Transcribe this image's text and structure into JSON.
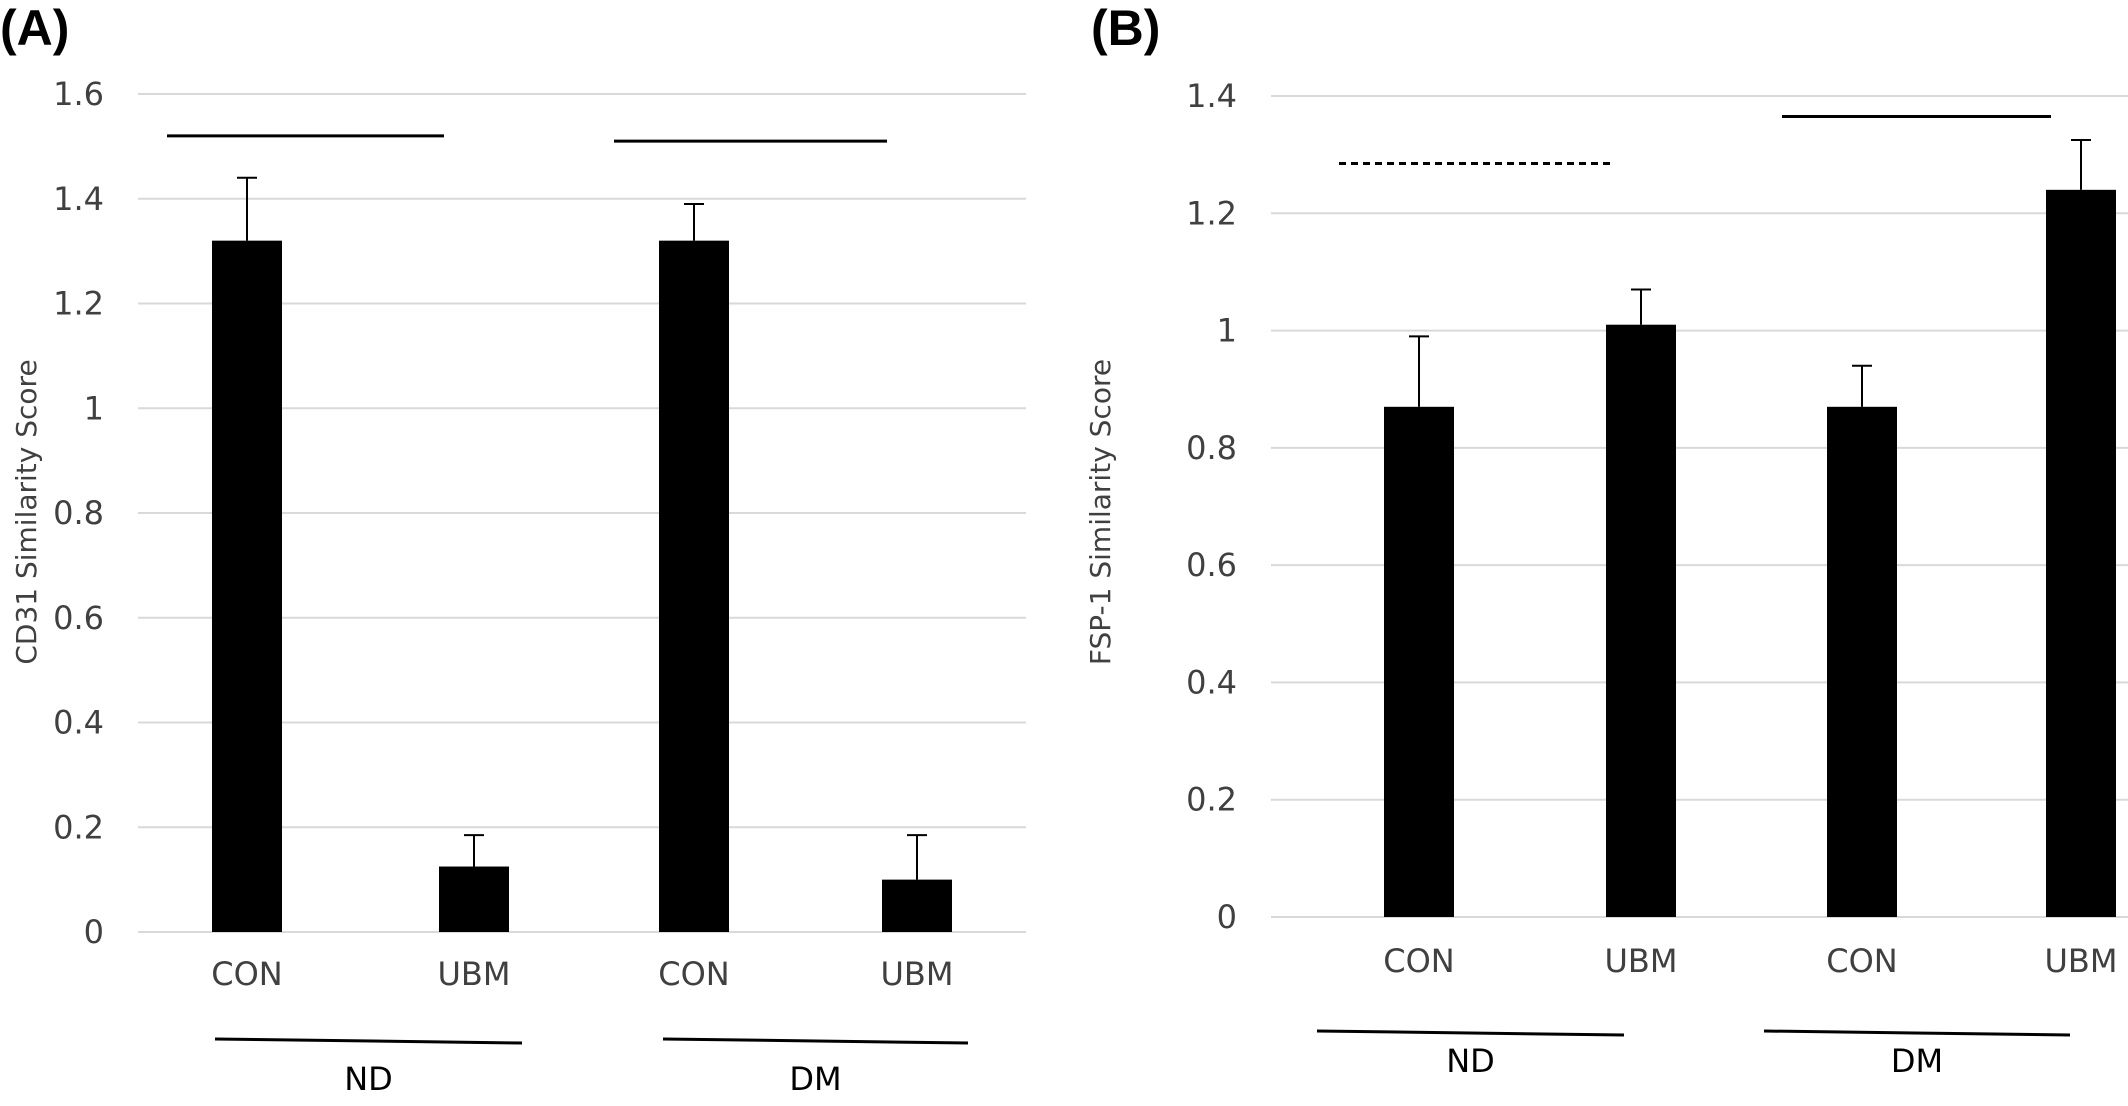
{
  "chart_data": [
    {
      "type": "bar",
      "panel_label": "(A)",
      "title": "",
      "xlabel": "",
      "ylabel": "CD31 Similarity Score",
      "ylim": [
        0,
        1.6
      ],
      "yticks": [
        "0",
        "0.2",
        "0.4",
        "0.6",
        "0.8",
        "1",
        "1.2",
        "1.4",
        "1.6"
      ],
      "categories": [
        "CON",
        "UBM",
        "CON",
        "UBM"
      ],
      "groups": [
        {
          "label": "ND",
          "categories": [
            0,
            1
          ]
        },
        {
          "label": "DM",
          "categories": [
            2,
            3
          ]
        }
      ],
      "values": [
        1.32,
        0.125,
        1.32,
        0.1
      ],
      "errors": [
        0.12,
        0.06,
        0.07,
        0.085
      ],
      "significance": [
        {
          "from": 0,
          "to": 1,
          "y": 1.52,
          "style": "solid"
        },
        {
          "from": 2,
          "to": 3,
          "y": 1.51,
          "style": "solid"
        }
      ],
      "grid": true,
      "bar_color": "#000000",
      "grid_color": "#d9d9d9"
    },
    {
      "type": "bar",
      "panel_label": "(B)",
      "title": "",
      "xlabel": "",
      "ylabel": "FSP-1  Similarity Score",
      "ylim": [
        0,
        1.4
      ],
      "yticks": [
        "0",
        "0.2",
        "0.4",
        "0.6",
        "0.8",
        "1",
        "1.2",
        "1.4"
      ],
      "categories": [
        "CON",
        "UBM",
        "CON",
        "UBM"
      ],
      "groups": [
        {
          "label": "ND",
          "categories": [
            0,
            1
          ]
        },
        {
          "label": "DM",
          "categories": [
            2,
            3
          ]
        }
      ],
      "values": [
        0.87,
        1.01,
        0.87,
        1.24
      ],
      "errors": [
        0.12,
        0.06,
        0.07,
        0.085
      ],
      "significance": [
        {
          "from": 0,
          "to": 1,
          "y": 1.285,
          "style": "dashed"
        },
        {
          "from": 2,
          "to": 3,
          "y": 1.365,
          "style": "solid"
        }
      ],
      "grid": true,
      "bar_color": "#000000",
      "grid_color": "#d9d9d9"
    }
  ]
}
